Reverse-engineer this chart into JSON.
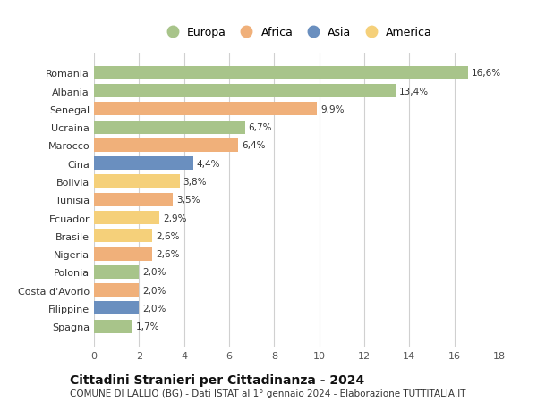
{
  "categories": [
    "Romania",
    "Albania",
    "Senegal",
    "Ucraina",
    "Marocco",
    "Cina",
    "Bolivia",
    "Tunisia",
    "Ecuador",
    "Brasile",
    "Nigeria",
    "Polonia",
    "Costa d'Avorio",
    "Filippine",
    "Spagna"
  ],
  "values": [
    16.6,
    13.4,
    9.9,
    6.7,
    6.4,
    4.4,
    3.8,
    3.5,
    2.9,
    2.6,
    2.6,
    2.0,
    2.0,
    2.0,
    1.7
  ],
  "labels": [
    "16,6%",
    "13,4%",
    "9,9%",
    "6,7%",
    "6,4%",
    "4,4%",
    "3,8%",
    "3,5%",
    "2,9%",
    "2,6%",
    "2,6%",
    "2,0%",
    "2,0%",
    "2,0%",
    "1,7%"
  ],
  "continents": [
    "Europa",
    "Europa",
    "Africa",
    "Europa",
    "Africa",
    "Asia",
    "America",
    "Africa",
    "America",
    "America",
    "Africa",
    "Europa",
    "Africa",
    "Asia",
    "Europa"
  ],
  "colors": {
    "Europa": "#a8c48a",
    "Africa": "#f0b07a",
    "Asia": "#6a8fbf",
    "America": "#f5d07a"
  },
  "legend_order": [
    "Europa",
    "Africa",
    "Asia",
    "America"
  ],
  "xlim": [
    0,
    18
  ],
  "xticks": [
    0,
    2,
    4,
    6,
    8,
    10,
    12,
    14,
    16,
    18
  ],
  "title": "Cittadini Stranieri per Cittadinanza - 2024",
  "subtitle": "COMUNE DI LALLIO (BG) - Dati ISTAT al 1° gennaio 2024 - Elaborazione TUTTITALIA.IT",
  "title_fontsize": 10,
  "subtitle_fontsize": 7.5,
  "background_color": "#ffffff",
  "grid_color": "#d0d0d0"
}
